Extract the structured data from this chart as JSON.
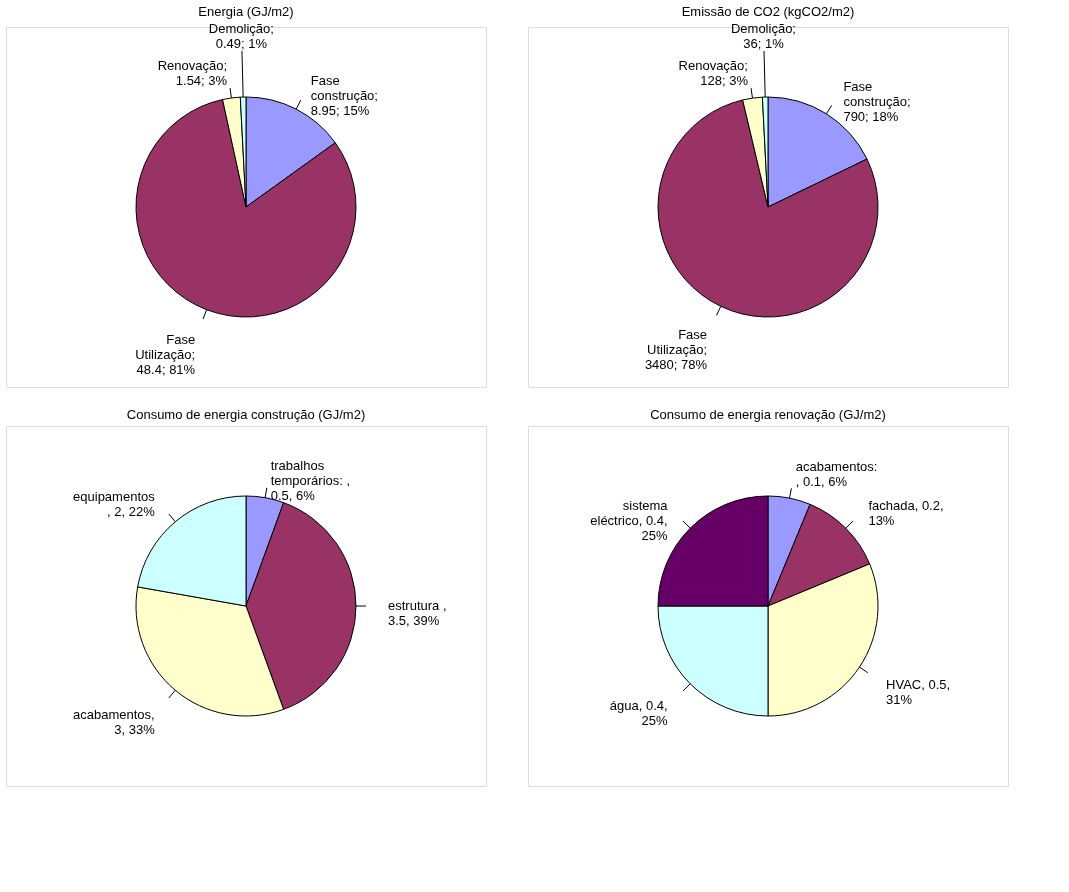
{
  "chart_data": [
    {
      "type": "pie",
      "title": "Energia (GJ/m2)",
      "categories": [
        "Fase construção",
        "Fase Utilização",
        "Renovação",
        "Demolição"
      ],
      "values": [
        8.95,
        48.4,
        1.54,
        0.49
      ],
      "colors": [
        "#9999ff",
        "#993366",
        "#ffffcc",
        "#ccffff"
      ],
      "value_labels": [
        ";\n8.95; 15%",
        ";\n48.4; 81%",
        ";\n1.54; 3%",
        ";\n0.49; 1%"
      ]
    },
    {
      "type": "pie",
      "title": "Emissão de CO2 (kgCO2/m2)",
      "categories": [
        "Fase construção",
        "Fase Utilização",
        "Renovação",
        "Demolição"
      ],
      "values": [
        790,
        3480,
        128,
        36
      ],
      "colors": [
        "#9999ff",
        "#993366",
        "#ffffcc",
        "#ccffff"
      ],
      "value_labels": [
        ";\n790; 18%",
        ";\n3480; 78%",
        ";\n128; 3%",
        ";\n36; 1%"
      ]
    },
    {
      "type": "pie",
      "title": "Consumo de energia construção (GJ/m2)",
      "categories": [
        "trabalhos temporários",
        "estrutura",
        "acabamentos",
        "equipamentos"
      ],
      "values": [
        0.5,
        3.5,
        3,
        2
      ],
      "colors": [
        "#9999ff",
        "#993366",
        "#ffffcc",
        "#ccffff"
      ],
      "value_labels": [
        ": ,\n0.5, 6%",
        " ,\n3.5, 39%",
        ",\n3, 33%",
        "\n, 2, 22%"
      ]
    },
    {
      "type": "pie",
      "title": "Consumo de energia renovação (GJ/m2)",
      "categories": [
        "acabamentos",
        "fachada",
        "HVAC",
        "água",
        "sistema eléctrico"
      ],
      "values": [
        0.1,
        0.2,
        0.5,
        0.4,
        0.4
      ],
      "colors": [
        "#9999ff",
        "#993366",
        "#ffffcc",
        "#ccffff",
        "#660066"
      ],
      "value_labels": [
        ":\n, 0.1, 6%",
        ", 0.2,\n13%",
        ", 0.5,\n31%",
        ", 0.4,\n25%",
        ", 0.4,\n25%"
      ]
    }
  ]
}
